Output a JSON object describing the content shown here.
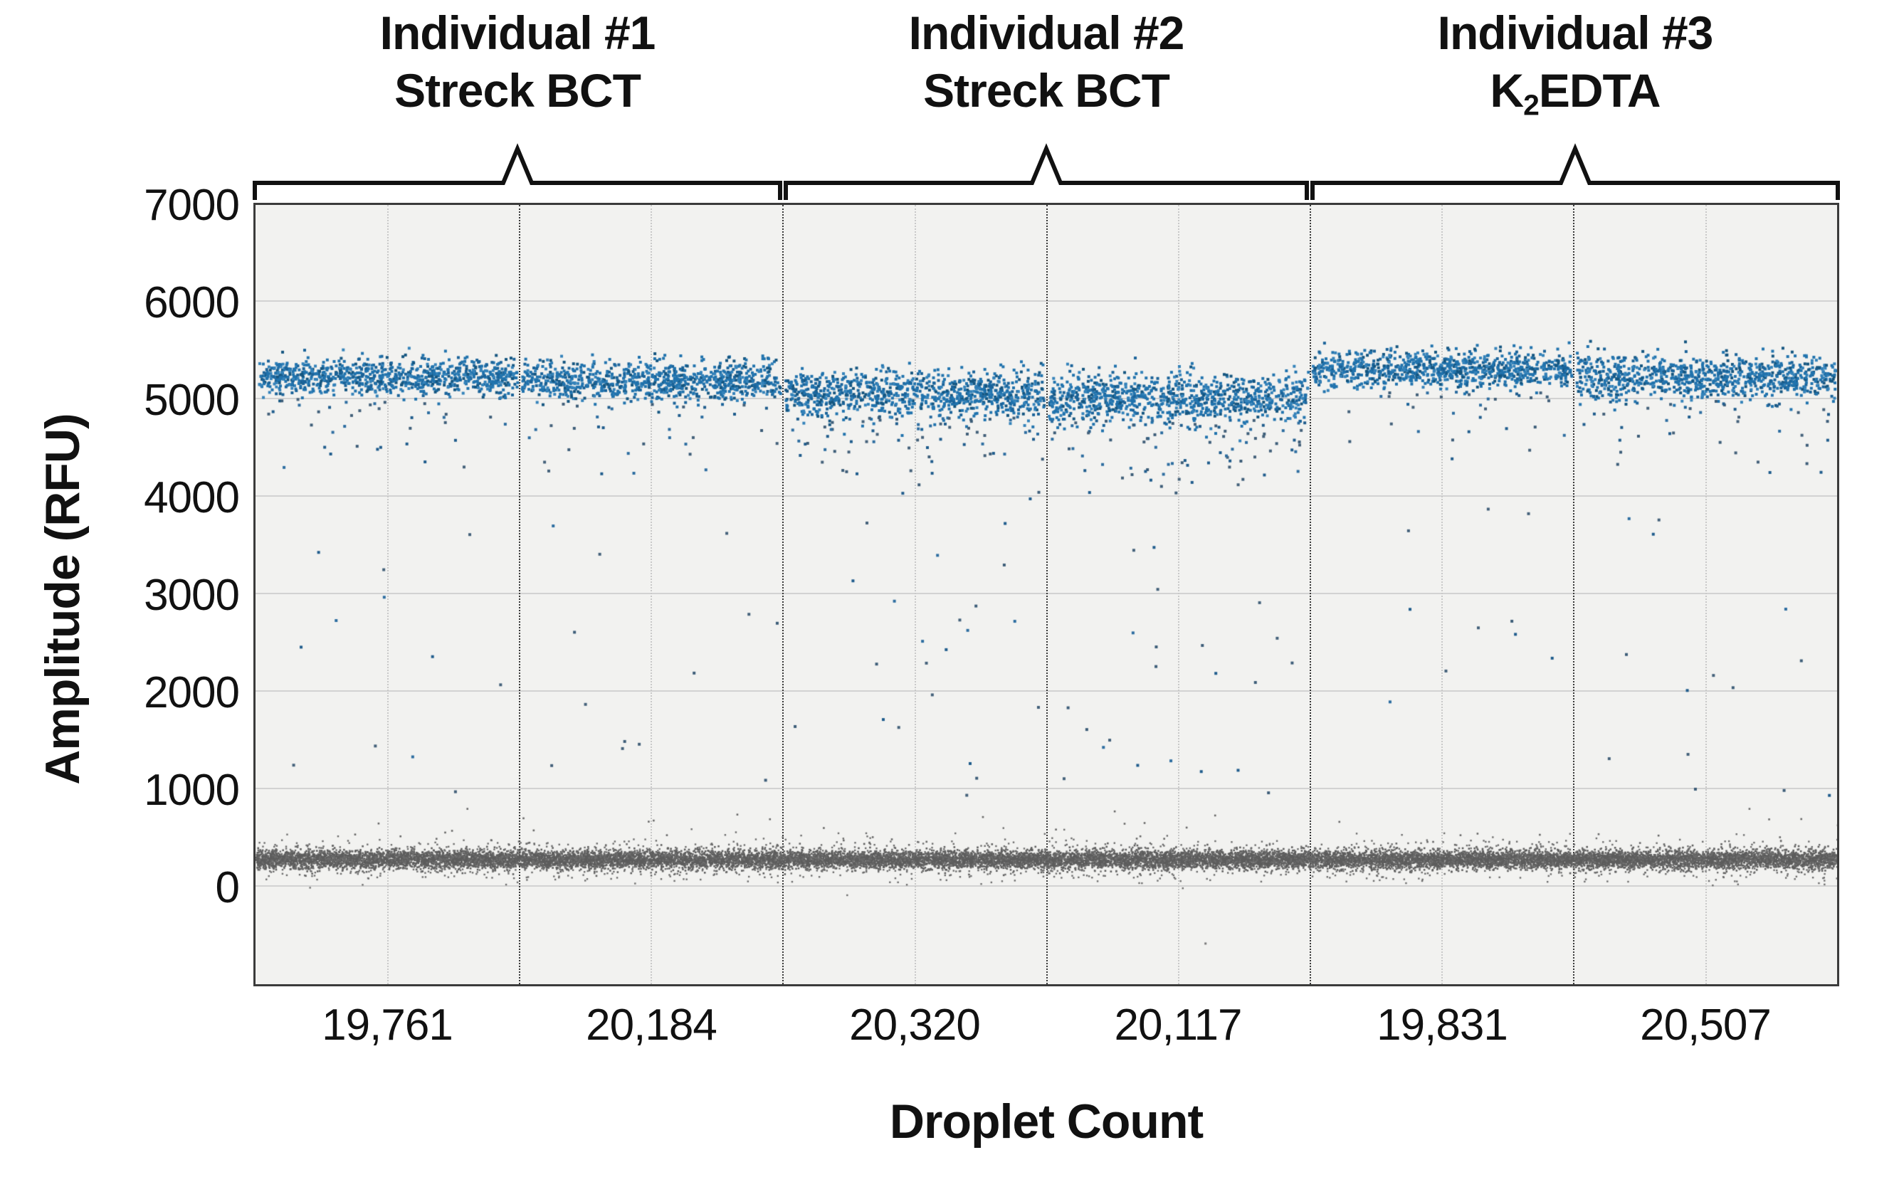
{
  "figure": {
    "groups": [
      {
        "line1": "Individual #1",
        "line2_pre": "Streck BCT",
        "line2_sub": "",
        "line2_rest": ""
      },
      {
        "line1": "Individual #2",
        "line2_pre": "Streck BCT",
        "line2_sub": "",
        "line2_rest": ""
      },
      {
        "line1": "Individual #3",
        "line2_pre": "K",
        "line2_sub": "2",
        "line2_rest": "EDTA"
      }
    ]
  },
  "chart_data": {
    "type": "scatter",
    "subtype": "ddPCR 1-D droplet amplitude plot",
    "xlabel": "Droplet Count",
    "ylabel": "Amplitude (RFU)",
    "y_ticks": [
      "7000",
      "6000",
      "5000",
      "4000",
      "3000",
      "2000",
      "1000",
      "0"
    ],
    "y_tick_values": [
      7000,
      6000,
      5000,
      4000,
      3000,
      2000,
      1000,
      0
    ],
    "ylim": [
      -1010,
      7005
    ],
    "grid": "horizontal solid lines every 1000 RFU; faint dotted vertical line at each well center; dark dotted divider between wells",
    "legend": "none",
    "groups": [
      {
        "label": "Individual #1 Streck BCT",
        "wells": [
          "19,761",
          "20,184"
        ]
      },
      {
        "label": "Individual #2 Streck BCT",
        "wells": [
          "20,320",
          "20,117"
        ]
      },
      {
        "label": "Individual #3 K2EDTA",
        "wells": [
          "19,831",
          "20,507"
        ]
      }
    ],
    "panels": [
      {
        "droplet_count": "19,761",
        "droplet_count_value": 19761,
        "group_index": 0,
        "positive_band_rfu": 5255,
        "positive_band_sd": 95,
        "dots_shown": 880,
        "rain_near": 36,
        "rain_deep": 12
      },
      {
        "droplet_count": "20,184",
        "droplet_count_value": 20184,
        "group_index": 0,
        "positive_band_rfu": 5210,
        "positive_band_sd": 100,
        "dots_shown": 900,
        "rain_near": 34,
        "rain_deep": 13
      },
      {
        "droplet_count": "20,320",
        "droplet_count_value": 20320,
        "group_index": 1,
        "positive_band_rfu": 5075,
        "positive_band_sd": 120,
        "dots_shown": 950,
        "rain_near": 74,
        "rain_deep": 22
      },
      {
        "droplet_count": "20,117",
        "droplet_count_value": 20117,
        "group_index": 1,
        "positive_band_rfu": 5040,
        "positive_band_sd": 125,
        "dots_shown": 950,
        "rain_near": 82,
        "rain_deep": 22
      },
      {
        "droplet_count": "19,831",
        "droplet_count_value": 19831,
        "group_index": 2,
        "positive_band_rfu": 5330,
        "positive_band_sd": 95,
        "dots_shown": 900,
        "rain_near": 32,
        "rain_deep": 10
      },
      {
        "droplet_count": "20,507",
        "droplet_count_value": 20507,
        "group_index": 2,
        "positive_band_rfu": 5245,
        "positive_band_sd": 115,
        "dots_shown": 910,
        "rain_near": 40,
        "rain_deep": 14
      }
    ],
    "negative_band_rfu": 300,
    "negative_band_sd": 45,
    "below_zero_outlier": {
      "panel_index": 3,
      "rfu": -560
    },
    "colors": {
      "positive_droplets": "#2173ad",
      "negative_droplets": "#5d5d5d",
      "plot_background": "#f2f2f0",
      "gridline": "#d2d2d2",
      "panel_divider": "#383838",
      "bracket": "#111111",
      "text": "#111111"
    }
  }
}
